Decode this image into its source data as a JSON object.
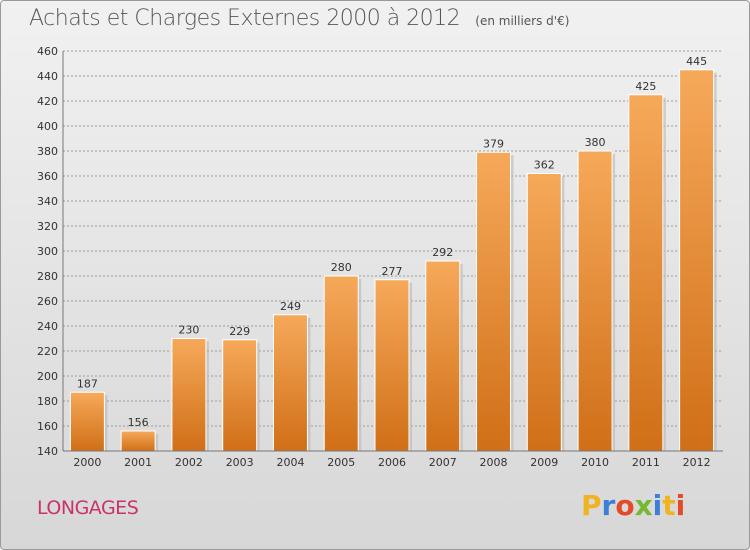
{
  "header": {
    "title": "Achats et Charges Externes 2000 à 2012",
    "unit": "(en milliers d'€)"
  },
  "footer": {
    "city": "LONGAGES",
    "logo_text": "Proxiti",
    "logo_colors": [
      "#f0b321",
      "#3c7fd8",
      "#e24a28",
      "#77b731",
      "#3c7fd8",
      "#f0b321",
      "#e24a28"
    ]
  },
  "colors": {
    "bar_top": "#f6a95a",
    "bar_bottom": "#d06f17",
    "bar_shadow": "#b8b8b8",
    "grid": "#9b9b9b",
    "axis_text": "#333333"
  },
  "chart_data": {
    "type": "bar",
    "title": "Achats et Charges Externes 2000 à 2012",
    "subtitle": "(en milliers d'€)",
    "xlabel": "",
    "ylabel": "",
    "categories": [
      "2000",
      "2001",
      "2002",
      "2003",
      "2004",
      "2005",
      "2006",
      "2007",
      "2008",
      "2009",
      "2010",
      "2011",
      "2012"
    ],
    "values": [
      187,
      156,
      230,
      229,
      249,
      280,
      277,
      292,
      379,
      362,
      380,
      425,
      445
    ],
    "ylim": [
      140,
      460
    ],
    "yticks": [
      140,
      160,
      180,
      200,
      220,
      240,
      260,
      280,
      300,
      320,
      340,
      360,
      380,
      400,
      420,
      440,
      460
    ],
    "grid": "horizontal dashed",
    "legend": "none"
  }
}
